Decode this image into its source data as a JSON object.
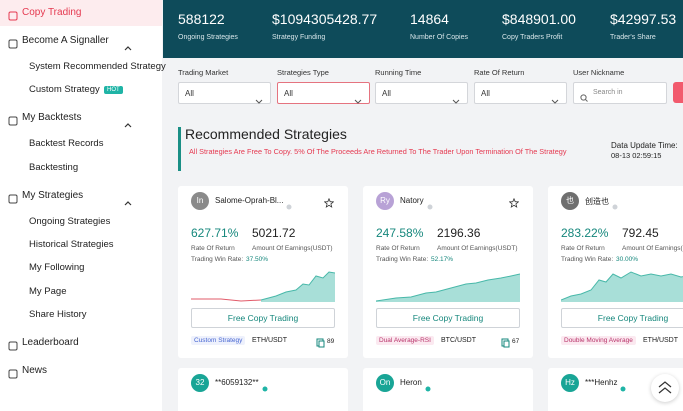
{
  "sidebar": [
    {
      "label": "Copy Trading"
    },
    {
      "label": "Become A Signaller",
      "children": [
        {
          "label": "System Recommended Strategy"
        },
        {
          "label": "Custom Strategy",
          "badge": "HOT"
        }
      ]
    },
    {
      "label": "My Backtests",
      "children": [
        {
          "label": "Backtest Records"
        },
        {
          "label": "Backtesting"
        }
      ]
    },
    {
      "label": "My Strategies",
      "children": [
        {
          "label": "Ongoing Strategies"
        },
        {
          "label": "Historical Strategies"
        },
        {
          "label": "My Following"
        },
        {
          "label": "My Page"
        },
        {
          "label": "Share History"
        }
      ]
    },
    {
      "label": "Leaderboard"
    },
    {
      "label": "News"
    }
  ],
  "stats": [
    {
      "value": "588122",
      "label": "Ongoing Strategies"
    },
    {
      "value": "$1094305428.77",
      "label": "Strategy Funding"
    },
    {
      "value": "14864",
      "label": "Number Of Copies"
    },
    {
      "value": "$848901.00",
      "label": "Copy Traders Profit"
    },
    {
      "value": "$42997.53",
      "label": "Trader's Share"
    }
  ],
  "filters": [
    {
      "label": "Trading Market",
      "value": "All"
    },
    {
      "label": "Strategies Type",
      "value": "All"
    },
    {
      "label": "Running Time",
      "value": "All"
    },
    {
      "label": "Rate Of Return",
      "value": "All"
    },
    {
      "label": "User Nickname",
      "placeholder": "Search in"
    }
  ],
  "section": {
    "title": "Recommended Strategies",
    "note": "All Strategies Are Free To Copy. 5% Of The Proceeds Are Returned To The Trader Upon Termination Of The Strategy",
    "update_label": "Data Update Time:",
    "update_time": "08-13 02:59:15"
  },
  "card_labels": {
    "rate": "Rate Of Return",
    "earnings": "Amount Of Earnings(USDT)",
    "win": "Trading Win Rate:",
    "button": "Free Copy Trading"
  },
  "cards": [
    {
      "avatar": "In",
      "name": "Salome-Oprah-Bl...",
      "return": "627.71%",
      "earnings": "5021.72",
      "win_rate": "37.50%",
      "tag": "Custom Strategy",
      "pair": "ETH/USDT",
      "copies": "89"
    },
    {
      "avatar": "Ry",
      "name": "Natory",
      "return": "247.58%",
      "earnings": "2196.36",
      "win_rate": "52.17%",
      "tag": "Dual Average-RSI",
      "pair": "BTC/USDT",
      "copies": "67"
    },
    {
      "avatar": "也",
      "name": "创造也",
      "return": "283.22%",
      "earnings": "792.45",
      "win_rate": "30.00%",
      "tag": "Double Moving Average",
      "pair": "ETH/USDT"
    }
  ],
  "more_cards": [
    {
      "avatar": "32",
      "name": "**6059132**"
    },
    {
      "avatar": "On",
      "name": "Heron"
    },
    {
      "avatar": "Hz",
      "name": "***Henhz"
    }
  ]
}
